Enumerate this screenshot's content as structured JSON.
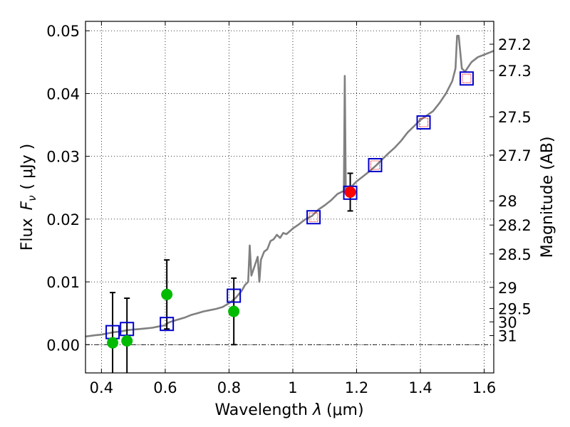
{
  "chart_data": {
    "type": "scatter",
    "xlabel_prefix": "Wavelength ",
    "xlabel_symbol": "λ",
    "xlabel_unit": "(μm)",
    "ylabel_prefix": "Flux ",
    "ylabel_symbol": "F",
    "ylabel_sub": "ν",
    "ylabel_unit": "( μJy )",
    "y2label": "Magnitude (AB)",
    "xlim": [
      0.35,
      1.63
    ],
    "ylim": [
      -0.0045,
      0.0515
    ],
    "x_ticks": [
      0.4,
      0.6,
      0.8,
      1.0,
      1.2,
      1.4,
      1.6
    ],
    "x_tick_labels": [
      "0.4",
      "0.6",
      "0.8",
      "1",
      "1.2",
      "1.4",
      "1.6"
    ],
    "y_ticks": [
      0.0,
      0.01,
      0.02,
      0.03,
      0.04,
      0.05
    ],
    "y_tick_labels": [
      "0.00",
      "0.01",
      "0.02",
      "0.03",
      "0.04",
      "0.05"
    ],
    "mag_ticks": [
      "27.2",
      "27.3",
      "27.5",
      "27.7",
      "28",
      "28.2",
      "28.5",
      "29",
      "29.5",
      "30",
      "31"
    ],
    "grid": true,
    "series": [
      {
        "name": "model_spectrum",
        "kind": "line",
        "color": "#808080",
        "x": [
          0.35,
          0.38,
          0.4,
          0.42,
          0.44,
          0.46,
          0.48,
          0.5,
          0.52,
          0.54,
          0.56,
          0.58,
          0.6,
          0.61,
          0.62,
          0.64,
          0.66,
          0.68,
          0.7,
          0.72,
          0.74,
          0.76,
          0.78,
          0.8,
          0.81,
          0.82,
          0.83,
          0.84,
          0.85,
          0.86,
          0.865,
          0.87,
          0.88,
          0.89,
          0.895,
          0.9,
          0.91,
          0.92,
          0.93,
          0.94,
          0.95,
          0.96,
          0.97,
          0.98,
          1.0,
          1.02,
          1.04,
          1.06,
          1.08,
          1.1,
          1.12,
          1.14,
          1.16,
          1.163,
          1.166,
          1.17,
          1.18,
          1.2,
          1.22,
          1.24,
          1.26,
          1.28,
          1.3,
          1.32,
          1.34,
          1.36,
          1.38,
          1.4,
          1.42,
          1.44,
          1.46,
          1.48,
          1.5,
          1.51,
          1.515,
          1.52,
          1.53,
          1.54,
          1.56,
          1.58,
          1.6,
          1.63
        ],
        "y": [
          0.0013,
          0.0015,
          0.0016,
          0.0018,
          0.002,
          0.0021,
          0.0023,
          0.0024,
          0.0025,
          0.0026,
          0.0027,
          0.0029,
          0.0031,
          0.0035,
          0.0037,
          0.004,
          0.0043,
          0.0047,
          0.005,
          0.0053,
          0.0055,
          0.0057,
          0.006,
          0.0066,
          0.007,
          0.0074,
          0.008,
          0.0086,
          0.0095,
          0.01,
          0.0158,
          0.011,
          0.0125,
          0.014,
          0.01,
          0.0135,
          0.0148,
          0.0152,
          0.0165,
          0.0168,
          0.0175,
          0.017,
          0.0178,
          0.0176,
          0.0185,
          0.0192,
          0.02,
          0.0205,
          0.0215,
          0.0222,
          0.023,
          0.024,
          0.0245,
          0.0428,
          0.0245,
          0.0248,
          0.025,
          0.026,
          0.0268,
          0.0276,
          0.0285,
          0.0295,
          0.0305,
          0.0314,
          0.0325,
          0.0338,
          0.0348,
          0.0358,
          0.0365,
          0.0372,
          0.0385,
          0.04,
          0.042,
          0.044,
          0.0492,
          0.0492,
          0.044,
          0.0435,
          0.045,
          0.0458,
          0.0462,
          0.0468
        ]
      },
      {
        "name": "model_photometry",
        "kind": "square",
        "color": "#0000cc",
        "x": [
          0.435,
          0.48,
          0.605,
          0.815,
          1.065,
          1.18,
          1.258,
          1.41,
          1.545
        ],
        "y": [
          0.002,
          0.0025,
          0.0033,
          0.0078,
          0.0203,
          0.0242,
          0.0286,
          0.0354,
          0.0424
        ]
      },
      {
        "name": "observed_detections",
        "kind": "circle",
        "color": "#ff0000",
        "x": [
          1.18
        ],
        "y": [
          0.0243
        ],
        "yerr": [
          0.003
        ]
      },
      {
        "name": "observed_upper_limits",
        "kind": "circle",
        "color": "#00bb00",
        "x": [
          0.435,
          0.48,
          0.605,
          0.815
        ],
        "y": [
          0.0003,
          0.0006,
          0.008,
          0.0053
        ],
        "yerr": [
          0.008,
          0.0068,
          0.0055,
          0.0053
        ]
      },
      {
        "name": "photometry_inner",
        "kind": "small_square",
        "color": "#ff0000",
        "x": [
          1.065,
          1.258,
          1.41,
          1.545
        ],
        "y": [
          0.0203,
          0.0286,
          0.0354,
          0.0424
        ]
      }
    ]
  }
}
